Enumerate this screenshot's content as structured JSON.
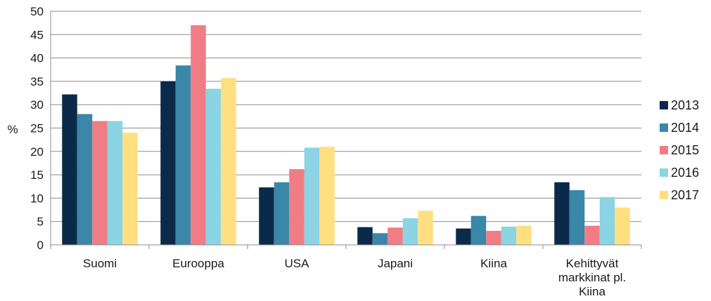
{
  "chart_data": {
    "type": "bar",
    "title": "",
    "xlabel": "",
    "ylabel": "%",
    "ylim": [
      0,
      50
    ],
    "yticks": [
      0,
      5,
      10,
      15,
      20,
      25,
      30,
      35,
      40,
      45,
      50
    ],
    "grid": true,
    "legend_position": "right",
    "categories": [
      [
        "Suomi"
      ],
      [
        "Eurooppa"
      ],
      [
        "USA"
      ],
      [
        "Japani"
      ],
      [
        "Kiina"
      ],
      [
        "Kehittyvät",
        "markkinat pl.",
        "Kiina"
      ]
    ],
    "series": [
      {
        "name": "2013",
        "color": "#0b2a4a",
        "values": [
          32.2,
          35.0,
          12.3,
          3.8,
          3.5,
          13.4
        ]
      },
      {
        "name": "2014",
        "color": "#3a87a8",
        "values": [
          28.0,
          38.4,
          13.4,
          2.5,
          6.2,
          11.7
        ]
      },
      {
        "name": "2015",
        "color": "#f07c86",
        "values": [
          26.5,
          47.0,
          16.2,
          3.7,
          3.0,
          4.1
        ]
      },
      {
        "name": "2016",
        "color": "#8ad4e3",
        "values": [
          26.5,
          33.4,
          20.8,
          5.7,
          3.9,
          10.2
        ]
      },
      {
        "name": "2017",
        "color": "#ffdf7f",
        "values": [
          24.0,
          35.7,
          21.0,
          7.3,
          4.1,
          8.0
        ]
      }
    ]
  }
}
